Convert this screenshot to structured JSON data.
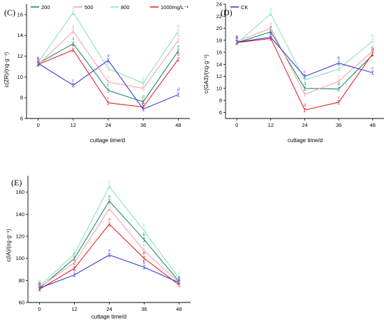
{
  "legend": [
    {
      "name": "200",
      "color": "#1a8a6b"
    },
    {
      "name": "500",
      "color": "#f4a3a8"
    },
    {
      "name": "800",
      "color": "#8fe0c4"
    },
    {
      "name": "1000mg/L⁻¹",
      "color": "#e8262b"
    },
    {
      "name": "CK",
      "color": "#3a3ad8"
    }
  ],
  "chart_data": [
    {
      "type": "line",
      "panel": "(C)",
      "xlabel": "cuttage time/d",
      "ylabel": "c(ZR)/(ng·g⁻¹)",
      "x": [
        0,
        12,
        24,
        36,
        48
      ],
      "xlim": [
        -4,
        52
      ],
      "ylim": [
        6,
        17
      ],
      "yticks": [
        6,
        8,
        10,
        12,
        14,
        16
      ],
      "series": [
        {
          "name": "200",
          "values": [
            11.3,
            13.2,
            8.7,
            7.6,
            12.5
          ],
          "letters": [
            "c",
            "a",
            "c",
            "d",
            "a"
          ]
        },
        {
          "name": "500",
          "values": [
            11.2,
            14.4,
            9.5,
            8.9,
            13.5
          ],
          "letters": [
            "c",
            "a",
            "d",
            "c",
            "b"
          ]
        },
        {
          "name": "800",
          "values": [
            11.4,
            16.2,
            10.8,
            9.4,
            14.4
          ],
          "letters": [
            "c",
            "a",
            "b",
            "d",
            "b"
          ]
        },
        {
          "name": "1000mg/L⁻¹",
          "values": [
            11.2,
            12.6,
            7.5,
            7.1,
            11.7
          ],
          "letters": [
            "b",
            "a",
            "c",
            "e",
            "b"
          ]
        },
        {
          "name": "CK",
          "values": [
            11.3,
            9.2,
            11.6,
            6.9,
            8.3
          ],
          "letters": [
            "b",
            "c",
            "a",
            "c",
            "d"
          ]
        }
      ]
    },
    {
      "type": "line",
      "panel": "(D)",
      "xlabel": "cuttage time/d",
      "ylabel": "c(GA3)/(ng·g⁻¹)",
      "x": [
        0,
        12,
        24,
        36,
        48
      ],
      "xlim": [
        -4,
        52
      ],
      "ylim": [
        5,
        24
      ],
      "yticks": [
        6,
        8,
        10,
        12,
        14,
        16,
        18,
        20,
        22,
        24
      ],
      "series": [
        {
          "name": "200",
          "values": [
            17.6,
            19.4,
            10.0,
            9.9,
            15.6
          ],
          "letters": [
            "b",
            "a",
            "d",
            "d",
            "b"
          ]
        },
        {
          "name": "500",
          "values": [
            17.8,
            20.0,
            9.0,
            11.2,
            16.2
          ],
          "letters": [
            "b",
            "a",
            "e",
            "c",
            "c"
          ]
        },
        {
          "name": "800",
          "values": [
            17.5,
            22.4,
            11.4,
            13.2,
            17.9
          ],
          "letters": [
            "a",
            "a",
            "c",
            "c",
            "b"
          ]
        },
        {
          "name": "1000mg/L⁻¹",
          "values": [
            17.6,
            18.3,
            6.4,
            7.7,
            15.8
          ],
          "letters": [
            "a",
            "a",
            "d",
            "c",
            "b"
          ]
        },
        {
          "name": "CK",
          "values": [
            17.7,
            18.5,
            12.0,
            14.2,
            12.6
          ],
          "letters": [
            "b",
            "b",
            "c",
            "b",
            "c"
          ]
        }
      ]
    },
    {
      "type": "line",
      "panel": "(E)",
      "xlabel": "cuttage time/d",
      "ylabel": "c(IA)/(ng·g⁻¹)",
      "x": [
        0,
        12,
        24,
        36,
        48
      ],
      "xlim": [
        -4,
        52
      ],
      "ylim": [
        60,
        175
      ],
      "yticks": [
        60,
        80,
        100,
        120,
        140,
        160
      ],
      "series": [
        {
          "name": "200",
          "values": [
            73,
            100,
            152,
            117,
            79
          ],
          "letters": [
            "c",
            "c",
            "a",
            "b",
            "c"
          ]
        },
        {
          "name": "500",
          "values": [
            74,
            96,
            145,
            107,
            78
          ],
          "letters": [
            "d",
            "c",
            "a",
            "b",
            "d"
          ]
        },
        {
          "name": "800",
          "values": [
            75,
            104,
            165,
            125,
            82
          ],
          "letters": [
            "e",
            "c",
            "a",
            "b",
            "d"
          ]
        },
        {
          "name": "1000mg/L⁻¹",
          "values": [
            72,
            91,
            131,
            100,
            76
          ],
          "letters": [
            "d",
            "c",
            "a",
            "b",
            "d"
          ]
        },
        {
          "name": "CK",
          "values": [
            73,
            85,
            103,
            92,
            78
          ],
          "letters": [
            "e",
            "c",
            "a",
            "b",
            "c"
          ]
        }
      ]
    }
  ]
}
